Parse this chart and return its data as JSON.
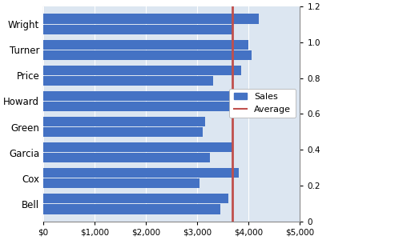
{
  "categories": [
    "Bell",
    "Cox",
    "Garcia",
    "Green",
    "Howard",
    "Price",
    "Turner",
    "Wright"
  ],
  "values_top": [
    3600,
    3800,
    3700,
    3150,
    4050,
    3850,
    4000,
    4200
  ],
  "values_bot": [
    3450,
    3050,
    3250,
    3100,
    3700,
    3300,
    4050,
    3700
  ],
  "average": 3680,
  "bar_color": "#4472C4",
  "avg_color": "#C0504D",
  "xlim": [
    0,
    5000
  ],
  "xticks": [
    0,
    1000,
    2000,
    3000,
    4000,
    5000
  ],
  "xticklabels": [
    "$0",
    "$1,000",
    "$2,000",
    "$3,000",
    "$4,000",
    "$5,000"
  ],
  "right_yticks": [
    0,
    0.2,
    0.4,
    0.6,
    0.8,
    1.0,
    1.2
  ],
  "legend_sales": "Sales",
  "legend_avg": "Average",
  "bg_color": "#DCE6F1",
  "bar_height": 0.38,
  "bar_gap": 0.04,
  "grid_color": "#FFFFFF",
  "outer_bg": "#FFFFFF"
}
